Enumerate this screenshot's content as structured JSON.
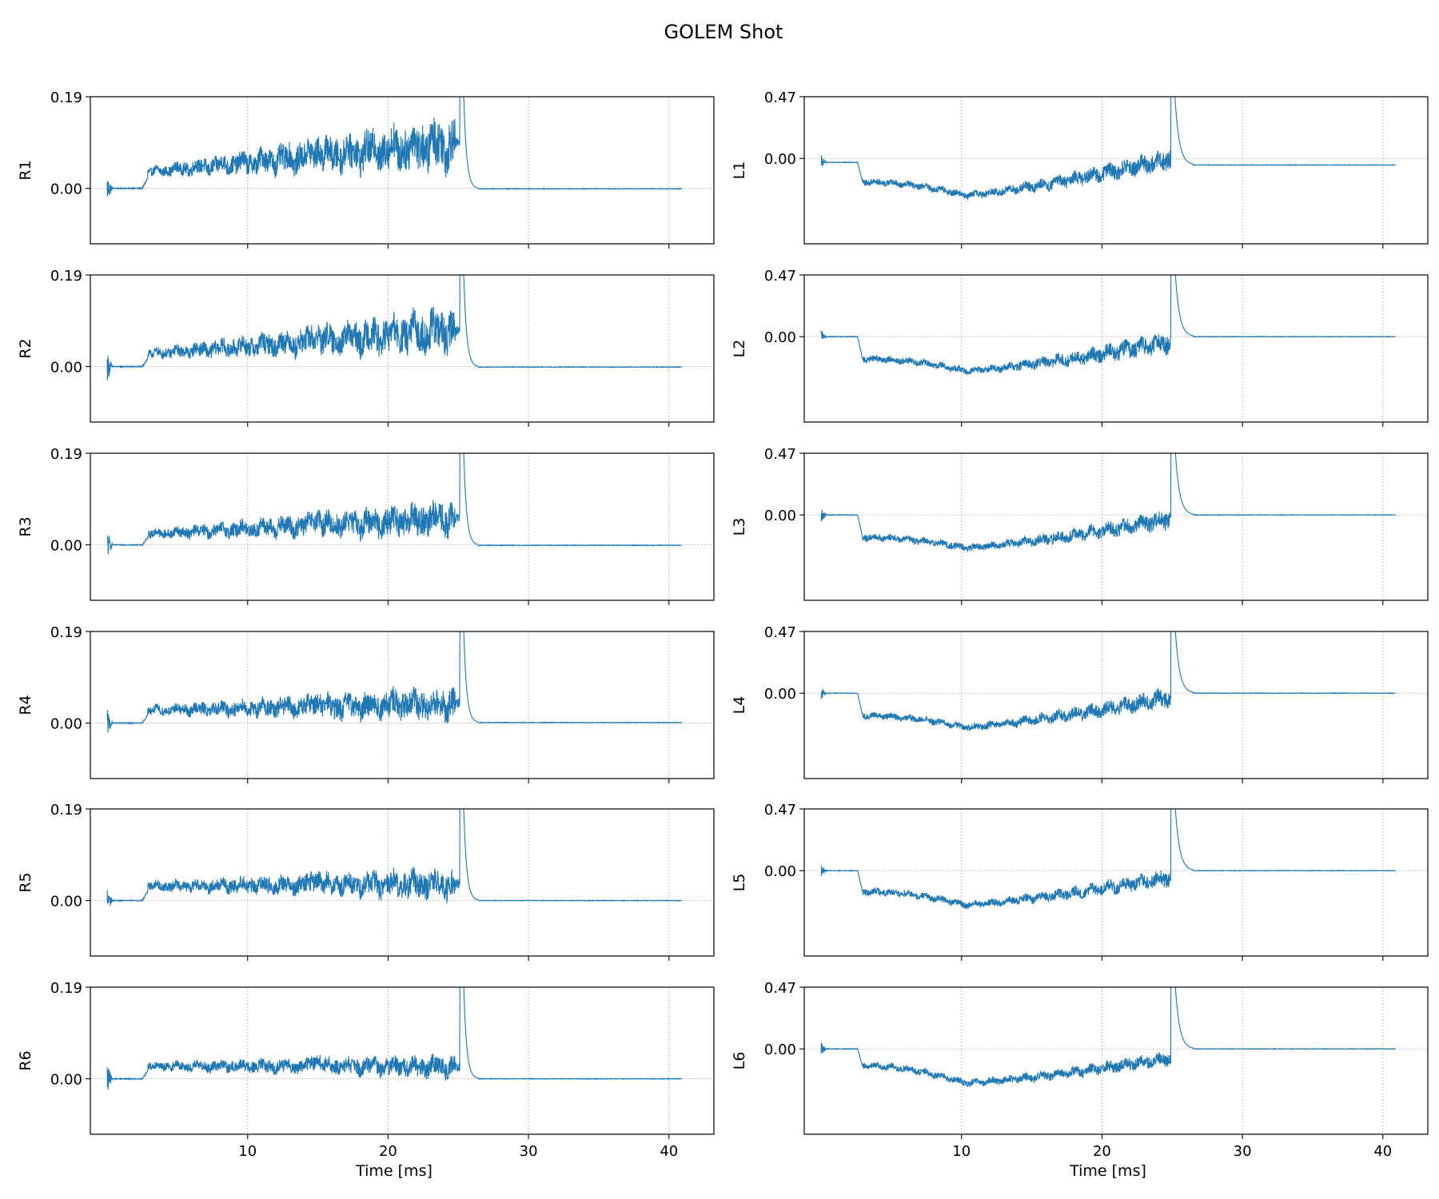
{
  "figure": {
    "title": "GOLEM Shot",
    "xlabel": "Time [ms]",
    "line_color": "#1f77b4",
    "grid_color": "#b0b0b0"
  },
  "chart_data": [
    {
      "type": "line",
      "panel": "R1",
      "ylabel": "R1",
      "xlim": [
        -1.2,
        43.2
      ],
      "ylim": [
        -0.115,
        0.19
      ],
      "yticks": [
        0.0,
        0.19
      ],
      "yticklabels": [
        "0.00",
        "0.19"
      ],
      "xticks": [
        10,
        20,
        30,
        40
      ],
      "xticklabels": [
        "10",
        "20",
        "30",
        "40"
      ],
      "grid": true,
      "trace": {
        "baseline": 0.0,
        "plateau_start": [
          2.9,
          0.045
        ],
        "plateau_end": [
          24.8,
          0.095
        ],
        "noise_amp": [
          0.01,
          0.06
        ],
        "spike_at": 25.1,
        "spike_peak": 0.19,
        "tail_level": -0.001,
        "x_end": 40.9
      }
    },
    {
      "type": "line",
      "panel": "R2",
      "ylabel": "R2",
      "xlim": [
        -1.2,
        43.2
      ],
      "ylim": [
        -0.115,
        0.19
      ],
      "yticks": [
        0.0,
        0.19
      ],
      "yticklabels": [
        "0.00",
        "0.19"
      ],
      "xticks": [
        10,
        20,
        30,
        40
      ],
      "xticklabels": [
        "10",
        "20",
        "30",
        "40"
      ],
      "grid": true,
      "trace": {
        "baseline": 0.0,
        "plateau_start": [
          2.9,
          0.035
        ],
        "plateau_end": [
          24.8,
          0.075
        ],
        "noise_amp": [
          0.01,
          0.05
        ],
        "spike_at": 25.1,
        "spike_peak": 0.19,
        "tail_level": -0.001,
        "x_end": 40.9
      }
    },
    {
      "type": "line",
      "panel": "R3",
      "ylabel": "R3",
      "xlim": [
        -1.2,
        43.2
      ],
      "ylim": [
        -0.115,
        0.19
      ],
      "yticks": [
        0.0,
        0.19
      ],
      "yticklabels": [
        "0.00",
        "0.19"
      ],
      "xticks": [
        10,
        20,
        30,
        40
      ],
      "xticklabels": [
        "10",
        "20",
        "30",
        "40"
      ],
      "grid": true,
      "trace": {
        "baseline": 0.0,
        "plateau_start": [
          2.9,
          0.03
        ],
        "plateau_end": [
          24.8,
          0.055
        ],
        "noise_amp": [
          0.01,
          0.04
        ],
        "spike_at": 25.1,
        "spike_peak": 0.19,
        "tail_level": -0.001,
        "x_end": 40.9
      }
    },
    {
      "type": "line",
      "panel": "R4",
      "ylabel": "R4",
      "xlim": [
        -1.2,
        43.2
      ],
      "ylim": [
        -0.115,
        0.19
      ],
      "yticks": [
        0.0,
        0.19
      ],
      "yticklabels": [
        "0.00",
        "0.19"
      ],
      "xticks": [
        10,
        20,
        30,
        40
      ],
      "xticklabels": [
        "10",
        "20",
        "30",
        "40"
      ],
      "grid": true,
      "trace": {
        "baseline": 0.0,
        "plateau_start": [
          2.9,
          0.035
        ],
        "plateau_end": [
          24.8,
          0.04
        ],
        "noise_amp": [
          0.01,
          0.04
        ],
        "spike_at": 25.1,
        "spike_peak": 0.19,
        "tail_level": 0.001,
        "x_end": 40.9
      }
    },
    {
      "type": "line",
      "panel": "R5",
      "ylabel": "R5",
      "xlim": [
        -1.2,
        43.2
      ],
      "ylim": [
        -0.115,
        0.19
      ],
      "yticks": [
        0.0,
        0.19
      ],
      "yticklabels": [
        "0.00",
        "0.19"
      ],
      "xticks": [
        10,
        20,
        30,
        40
      ],
      "xticklabels": [
        "10",
        "20",
        "30",
        "40"
      ],
      "grid": true,
      "trace": {
        "baseline": 0.0,
        "plateau_start": [
          2.9,
          0.04
        ],
        "plateau_end": [
          24.8,
          0.035
        ],
        "noise_amp": [
          0.01,
          0.035
        ],
        "spike_at": 25.1,
        "spike_peak": 0.19,
        "tail_level": 0.0,
        "x_end": 40.9
      }
    },
    {
      "type": "line",
      "panel": "R6",
      "ylabel": "R6",
      "xlim": [
        -1.2,
        43.2
      ],
      "ylim": [
        -0.115,
        0.19
      ],
      "yticks": [
        0.0,
        0.19
      ],
      "yticklabels": [
        "0.00",
        "0.19"
      ],
      "xticks": [
        10,
        20,
        30,
        40
      ],
      "xticklabels": [
        "10",
        "20",
        "30",
        "40"
      ],
      "grid": true,
      "trace": {
        "baseline": 0.0,
        "plateau_start": [
          2.9,
          0.035
        ],
        "plateau_end": [
          24.8,
          0.025
        ],
        "noise_amp": [
          0.01,
          0.025
        ],
        "spike_at": 25.1,
        "spike_peak": 0.19,
        "tail_level": 0.0,
        "x_end": 40.9
      }
    },
    {
      "type": "line",
      "panel": "L1",
      "ylabel": "L1",
      "xlim": [
        -1.2,
        43.2
      ],
      "ylim": [
        -0.65,
        0.47
      ],
      "yticks": [
        0.0,
        0.47
      ],
      "yticklabels": [
        "0.00",
        "0.47"
      ],
      "xticks": [
        10,
        20,
        30,
        40
      ],
      "xticklabels": [
        "10",
        "20",
        "30",
        "40"
      ],
      "grid": true,
      "trace": {
        "baseline": -0.03,
        "drop_at": 2.6,
        "dip_center": 10.2,
        "dip_level": -0.28,
        "start_level": -0.18,
        "end_level": 0.0,
        "noise_amp": [
          0.03,
          0.09
        ],
        "spike_at": 24.9,
        "spike_peak": 0.47,
        "tail_level": -0.05,
        "x_end": 40.9
      }
    },
    {
      "type": "line",
      "panel": "L2",
      "ylabel": "L2",
      "xlim": [
        -1.2,
        43.2
      ],
      "ylim": [
        -0.65,
        0.47
      ],
      "yticks": [
        0.0,
        0.47
      ],
      "yticklabels": [
        "0.00",
        "0.47"
      ],
      "xticks": [
        10,
        20,
        30,
        40
      ],
      "xticklabels": [
        "10",
        "20",
        "30",
        "40"
      ],
      "grid": true,
      "trace": {
        "baseline": 0.0,
        "drop_at": 2.6,
        "dip_center": 10.2,
        "dip_level": -0.26,
        "start_level": -0.17,
        "end_level": -0.04,
        "noise_amp": [
          0.03,
          0.09
        ],
        "spike_at": 24.9,
        "spike_peak": 0.47,
        "tail_level": 0.0,
        "x_end": 40.9
      }
    },
    {
      "type": "line",
      "panel": "L3",
      "ylabel": "L3",
      "xlim": [
        -1.2,
        43.2
      ],
      "ylim": [
        -0.65,
        0.47
      ],
      "yticks": [
        0.0,
        0.47
      ],
      "yticklabels": [
        "0.00",
        "0.47"
      ],
      "xticks": [
        10,
        20,
        30,
        40
      ],
      "xticklabels": [
        "10",
        "20",
        "30",
        "40"
      ],
      "grid": true,
      "trace": {
        "baseline": 0.0,
        "drop_at": 2.6,
        "dip_center": 10.2,
        "dip_level": -0.25,
        "start_level": -0.17,
        "end_level": -0.03,
        "noise_amp": [
          0.03,
          0.08
        ],
        "spike_at": 24.9,
        "spike_peak": 0.47,
        "tail_level": 0.0,
        "x_end": 40.9
      }
    },
    {
      "type": "line",
      "panel": "L4",
      "ylabel": "L4",
      "xlim": [
        -1.2,
        43.2
      ],
      "ylim": [
        -0.65,
        0.47
      ],
      "yticks": [
        0.0,
        0.47
      ],
      "yticklabels": [
        "0.00",
        "0.47"
      ],
      "xticks": [
        10,
        20,
        30,
        40
      ],
      "xticklabels": [
        "10",
        "20",
        "30",
        "40"
      ],
      "grid": true,
      "trace": {
        "baseline": 0.0,
        "drop_at": 2.6,
        "dip_center": 10.2,
        "dip_level": -0.26,
        "start_level": -0.17,
        "end_level": -0.03,
        "noise_amp": [
          0.03,
          0.08
        ],
        "spike_at": 24.9,
        "spike_peak": 0.47,
        "tail_level": 0.0,
        "x_end": 40.9
      }
    },
    {
      "type": "line",
      "panel": "L5",
      "ylabel": "L5",
      "xlim": [
        -1.2,
        43.2
      ],
      "ylim": [
        -0.65,
        0.47
      ],
      "yticks": [
        0.0,
        0.47
      ],
      "yticklabels": [
        "0.00",
        "0.47"
      ],
      "xticks": [
        10,
        20,
        30,
        40
      ],
      "xticklabels": [
        "10",
        "20",
        "30",
        "40"
      ],
      "grid": true,
      "trace": {
        "baseline": 0.0,
        "drop_at": 2.6,
        "dip_center": 10.2,
        "dip_level": -0.26,
        "start_level": -0.16,
        "end_level": -0.05,
        "noise_amp": [
          0.03,
          0.07
        ],
        "spike_at": 24.9,
        "spike_peak": 0.47,
        "tail_level": 0.0,
        "x_end": 40.9
      }
    },
    {
      "type": "line",
      "panel": "L6",
      "ylabel": "L6",
      "xlim": [
        -1.2,
        43.2
      ],
      "ylim": [
        -0.65,
        0.47
      ],
      "yticks": [
        0.0,
        0.47
      ],
      "yticklabels": [
        "0.00",
        "0.47"
      ],
      "xticks": [
        10,
        20,
        30,
        40
      ],
      "xticklabels": [
        "10",
        "20",
        "30",
        "40"
      ],
      "grid": true,
      "trace": {
        "baseline": 0.0,
        "drop_at": 2.6,
        "dip_center": 10.2,
        "dip_level": -0.26,
        "start_level": -0.13,
        "end_level": -0.07,
        "noise_amp": [
          0.03,
          0.06
        ],
        "spike_at": 24.9,
        "spike_peak": 0.47,
        "tail_level": 0.0,
        "x_end": 40.9
      }
    }
  ]
}
